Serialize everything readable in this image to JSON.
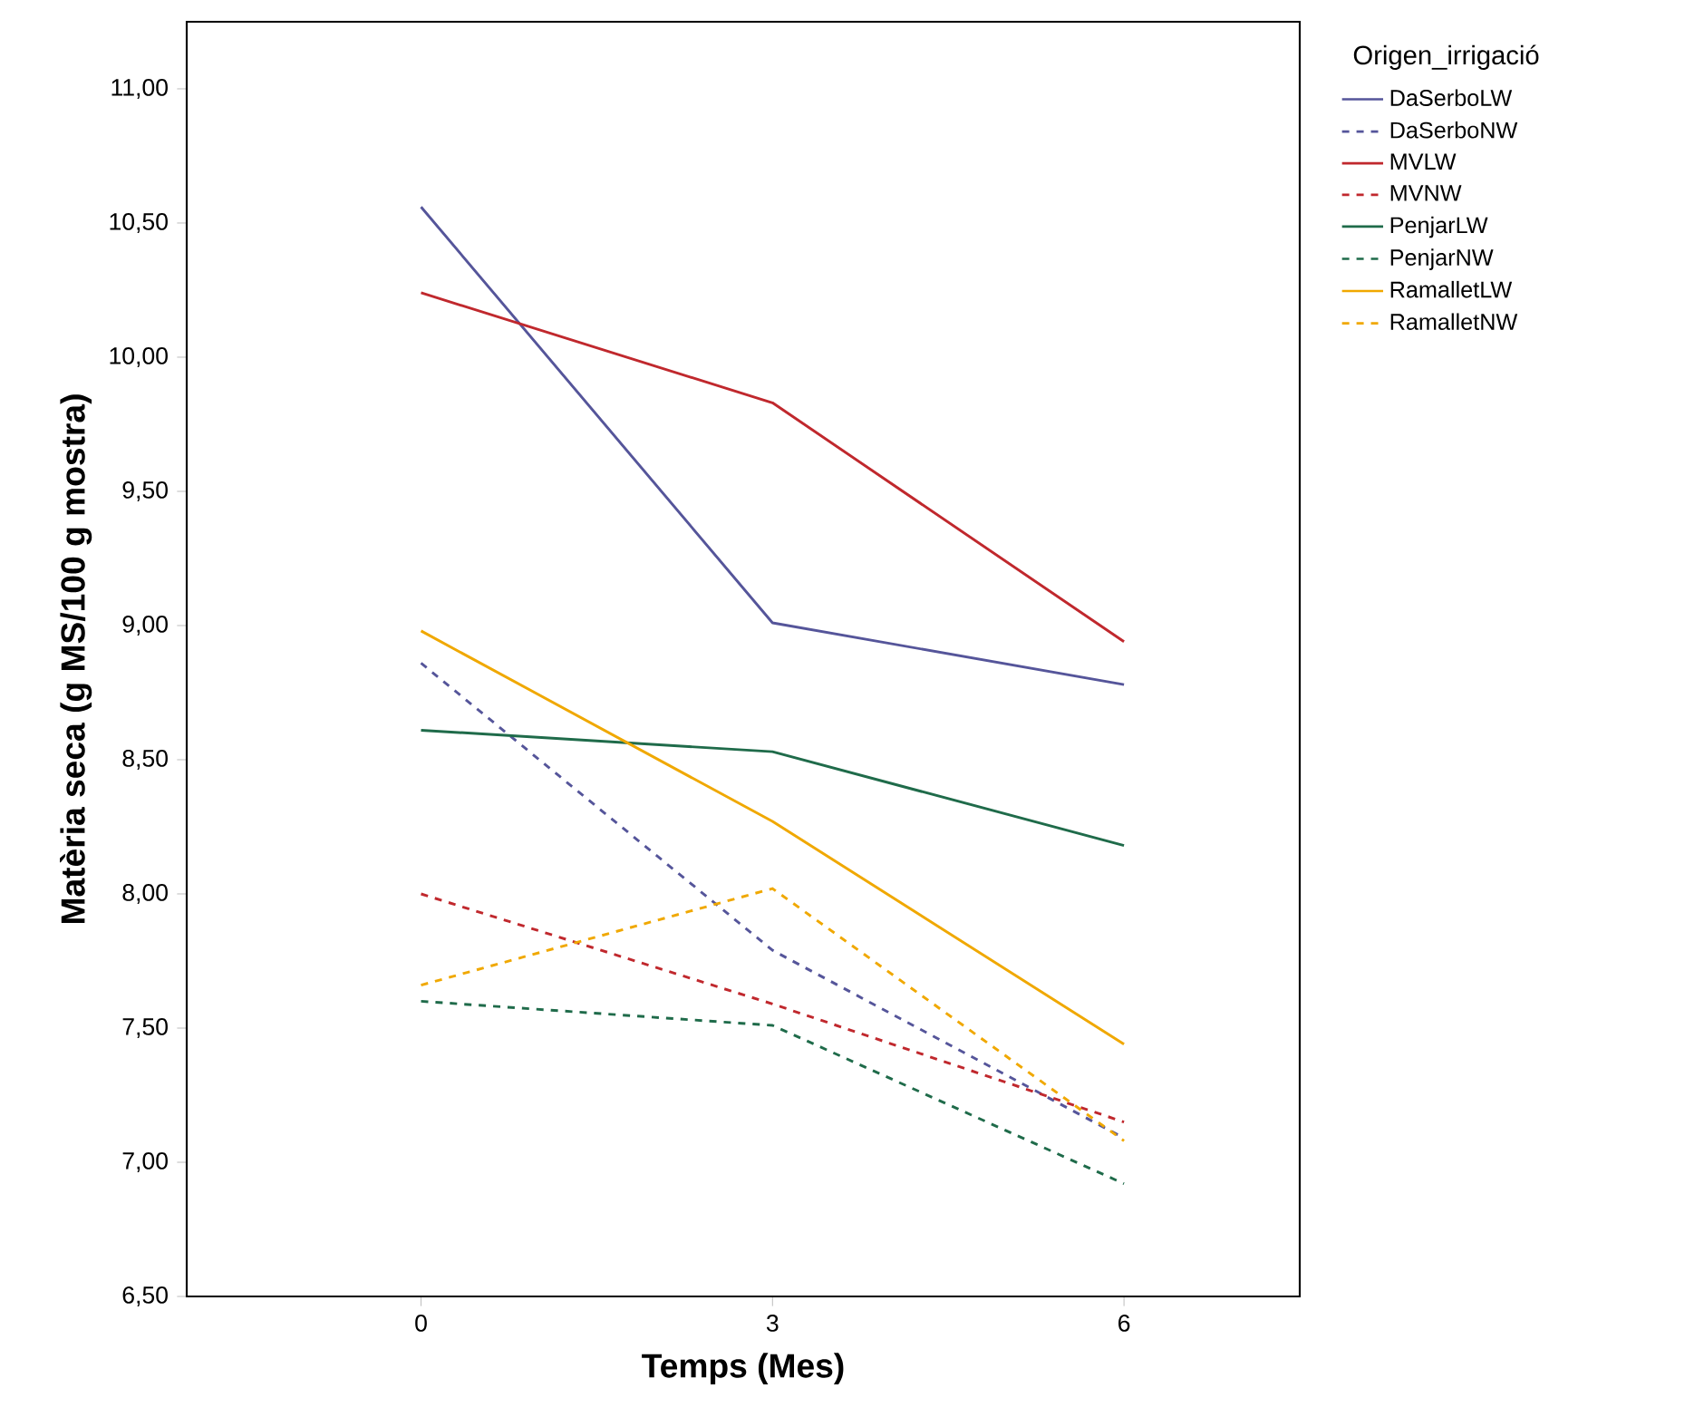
{
  "chart_data": {
    "type": "line",
    "xlabel": "Temps (Mes)",
    "ylabel": "Matèria seca (g MS/100 g mostra)",
    "legend_title": "Origen_irrigació",
    "x": [
      0,
      3,
      6
    ],
    "xlim": [
      -2,
      7.5
    ],
    "xticks": [
      0,
      3,
      6
    ],
    "ylim": [
      6.5,
      11.25
    ],
    "yticks": [
      {
        "value": 6.5,
        "label": "6,50"
      },
      {
        "value": 7,
        "label": "7,00"
      },
      {
        "value": 7.5,
        "label": "7,50"
      },
      {
        "value": 8,
        "label": "8,00"
      },
      {
        "value": 8.5,
        "label": "8,50"
      },
      {
        "value": 9,
        "label": "9,00"
      },
      {
        "value": 9.5,
        "label": "9,50"
      },
      {
        "value": 10,
        "label": "10,00"
      },
      {
        "value": 10.5,
        "label": "10,50"
      },
      {
        "value": 11,
        "label": "11,00"
      }
    ],
    "grid": false,
    "legend": "right",
    "marker": "none",
    "series": [
      {
        "name": "DaSerboLW",
        "color": "#55559a",
        "line_style": "solid",
        "values": [
          10.56,
          9.01,
          8.78
        ]
      },
      {
        "name": "DaSerboNW",
        "color": "#55559a",
        "line_style": "dashed",
        "values": [
          8.86,
          7.79,
          7.09
        ]
      },
      {
        "name": "MVLW",
        "color": "#c0282d",
        "line_style": "solid",
        "values": [
          10.24,
          9.83,
          8.94
        ]
      },
      {
        "name": "MVNW",
        "color": "#c0282d",
        "line_style": "dashed",
        "values": [
          8.0,
          7.59,
          7.15
        ]
      },
      {
        "name": "PenjarLW",
        "color": "#1f6b4a",
        "line_style": "solid",
        "values": [
          8.61,
          8.53,
          8.18
        ]
      },
      {
        "name": "PenjarNW",
        "color": "#1f6b4a",
        "line_style": "dashed",
        "values": [
          7.6,
          7.51,
          6.92
        ]
      },
      {
        "name": "RamalletLW",
        "color": "#f0a800",
        "line_style": "solid",
        "values": [
          8.98,
          8.27,
          7.44
        ]
      },
      {
        "name": "RamalletNW",
        "color": "#f0a800",
        "line_style": "dashed",
        "values": [
          7.66,
          8.02,
          7.08
        ]
      }
    ]
  }
}
